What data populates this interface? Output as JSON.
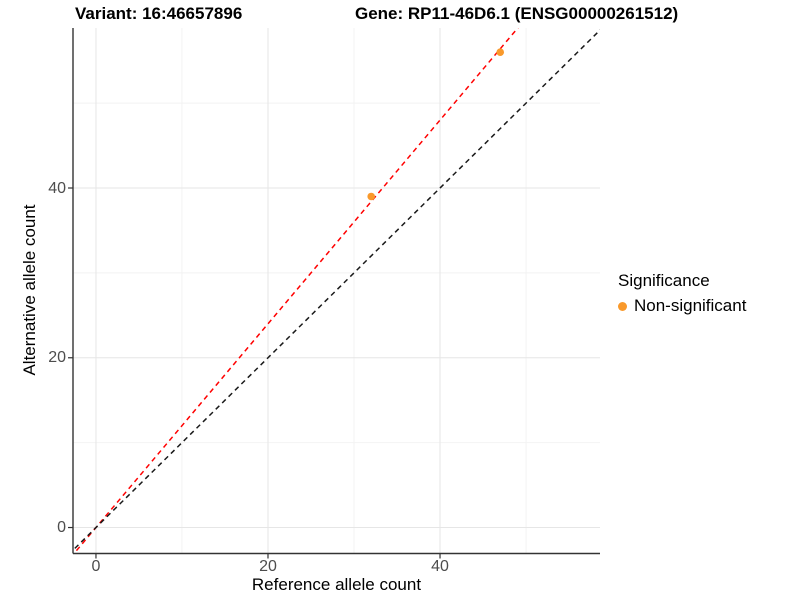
{
  "chart_data": {
    "type": "scatter",
    "title_left": "Variant: 16:46657896",
    "title_right": "Gene: RP11-46D6.1 (ENSG00000261512)",
    "xlabel": "Reference allele count",
    "ylabel": "Alternative allele count",
    "xlim": [
      -2.67,
      58.6
    ],
    "ylim": [
      -3.06,
      58.85
    ],
    "x_major_ticks": [
      0,
      20,
      40
    ],
    "y_major_ticks": [
      0,
      20,
      40
    ],
    "x_minor_ticks": [
      10,
      30,
      50
    ],
    "y_minor_ticks": [
      10,
      30,
      50
    ],
    "grid": true,
    "legend": {
      "title": "Significance",
      "position": "right",
      "items": [
        {
          "label": "Non-significant",
          "color": "#F9992B"
        }
      ]
    },
    "series": [
      {
        "name": "Non-significant",
        "color": "#F9992B",
        "marker": "circle",
        "marker_radius": 3.8,
        "points": [
          [
            32,
            39
          ],
          [
            47,
            56
          ]
        ]
      }
    ],
    "reference_lines": [
      {
        "name": "fitted-ratio-line",
        "color": "#FF0000",
        "style": "dashed",
        "slope": 1.2,
        "intercept": 0
      },
      {
        "name": "identity-line",
        "color": "#1A1A1A",
        "style": "dashed",
        "slope": 1.0,
        "intercept": 0
      }
    ],
    "style": {
      "background": "#FFFFFF",
      "major_grid_color": "#E6E6E6",
      "minor_grid_color": "#F2F2F2",
      "axis_line_color": "#333333",
      "tick_label_color": "#4D4D4D"
    }
  }
}
